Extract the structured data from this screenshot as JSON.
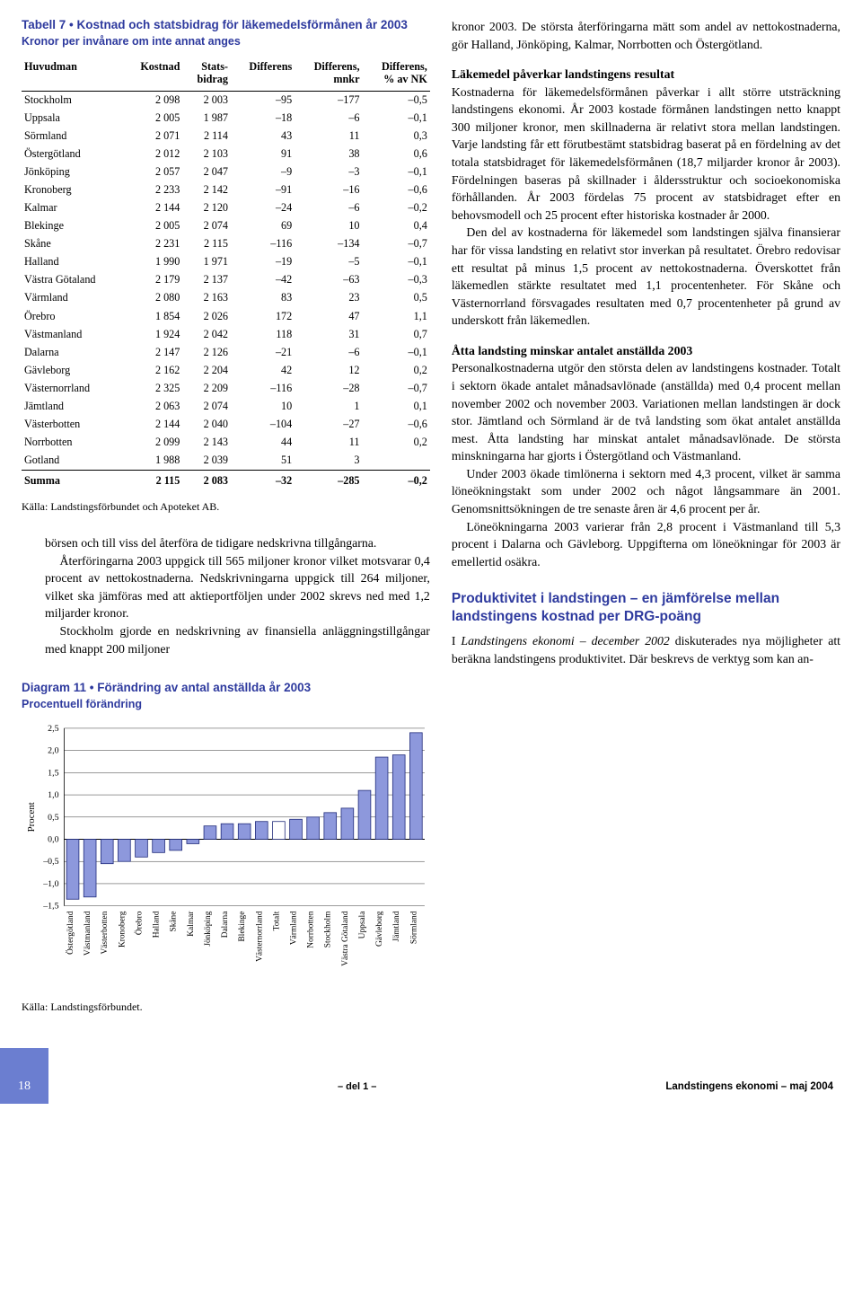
{
  "table7": {
    "title": "Tabell 7 • Kostnad och statsbidrag för läkemedelsförmånen år 2003",
    "subtitle": "Kronor per invånare om inte annat anges",
    "columns": [
      "Huvudman",
      "Kostnad",
      "Stats-\nbidrag",
      "Differens",
      "Differens,\nmnkr",
      "Differens,\n% av NK"
    ],
    "rows": [
      [
        "Stockholm",
        "2 098",
        "2 003",
        "–95",
        "–177",
        "–0,5"
      ],
      [
        "Uppsala",
        "2 005",
        "1 987",
        "–18",
        "–6",
        "–0,1"
      ],
      [
        "Sörmland",
        "2 071",
        "2 114",
        "43",
        "11",
        "0,3"
      ],
      [
        "Östergötland",
        "2 012",
        "2 103",
        "91",
        "38",
        "0,6"
      ],
      [
        "Jönköping",
        "2 057",
        "2 047",
        "–9",
        "–3",
        "–0,1"
      ],
      [
        "Kronoberg",
        "2 233",
        "2 142",
        "–91",
        "–16",
        "–0,6"
      ],
      [
        "Kalmar",
        "2 144",
        "2 120",
        "–24",
        "–6",
        "–0,2"
      ],
      [
        "Blekinge",
        "2 005",
        "2 074",
        "69",
        "10",
        "0,4"
      ],
      [
        "Skåne",
        "2 231",
        "2 115",
        "–116",
        "–134",
        "–0,7"
      ],
      [
        "Halland",
        "1 990",
        "1 971",
        "–19",
        "–5",
        "–0,1"
      ],
      [
        "Västra Götaland",
        "2 179",
        "2 137",
        "–42",
        "–63",
        "–0,3"
      ],
      [
        "Värmland",
        "2 080",
        "2 163",
        "83",
        "23",
        "0,5"
      ],
      [
        "Örebro",
        "1 854",
        "2 026",
        "172",
        "47",
        "1,1"
      ],
      [
        "Västmanland",
        "1 924",
        "2 042",
        "118",
        "31",
        "0,7"
      ],
      [
        "Dalarna",
        "2 147",
        "2 126",
        "–21",
        "–6",
        "–0,1"
      ],
      [
        "Gävleborg",
        "2 162",
        "2 204",
        "42",
        "12",
        "0,2"
      ],
      [
        "Västernorrland",
        "2 325",
        "2 209",
        "–116",
        "–28",
        "–0,7"
      ],
      [
        "Jämtland",
        "2 063",
        "2 074",
        "10",
        "1",
        "0,1"
      ],
      [
        "Västerbotten",
        "2 144",
        "2 040",
        "–104",
        "–27",
        "–0,6"
      ],
      [
        "Norrbotten",
        "2 099",
        "2 143",
        "44",
        "11",
        "0,2"
      ],
      [
        "Gotland",
        "1 988",
        "2 039",
        "51",
        "3",
        ""
      ]
    ],
    "sum": [
      "Summa",
      "2 115",
      "2 083",
      "–32",
      "–285",
      "–0,2"
    ],
    "source": "Källa: Landstingsförbundet och Apoteket AB."
  },
  "left_body": {
    "p1": "börsen och till viss del återföra de tidigare nedskrivna tillgångarna.",
    "p2": "Återföringarna 2003 uppgick till 565 miljoner kronor vilket motsvarar 0,4 procent av nettokostnaderna. Nedskrivningarna uppgick till 264 miljoner, vilket ska jämföras med att aktieportföljen under 2002 skrevs ned med 1,2 miljarder kronor.",
    "p3": "Stockholm gjorde en nedskrivning av finansiella anläggningstillgångar med knappt 200 miljoner"
  },
  "right_body": {
    "p0": "kronor 2003. De största återföringarna mätt som andel av nettokostnaderna, gör Halland, Jönköping, Kalmar, Norrbotten och Östergötland.",
    "lead1": "Läkemedel påverkar landstingens resultat",
    "p1": "Kostnaderna för läkemedelsförmånen påverkar i allt större utsträckning landstingens ekonomi. År 2003 kostade förmånen landstingen netto knappt 300 miljoner kronor, men skillnaderna är relativt stora mellan landstingen. Varje landsting får ett förutbestämt statsbidrag baserat på en fördelning av det totala statsbidraget för läkemedelsförmånen (18,7 miljarder kronor år 2003). Fördelningen baseras på skillnader i åldersstruktur och socioekonomiska förhållanden. År 2003 fördelas 75 procent av statsbidraget efter en behovsmodell och 25 procent efter historiska kostnader år 2000.",
    "p2": "Den del av kostnaderna för läkemedel som landstingen själva finansierar har för vissa landsting en relativt stor inverkan på resultatet. Örebro redovisar ett resultat på minus 1,5 procent av nettokostnaderna. Överskottet från läkemedlen stärkte resultatet med 1,1 procentenheter. För Skåne och Västernorrland försvagades resultaten med 0,7 procentenheter på grund av underskott från läkemedlen.",
    "lead2": "Åtta landsting minskar antalet anställda 2003",
    "p3": "Personalkostnaderna utgör den största delen av landstingens kostnader. Totalt i sektorn ökade antalet månadsavlönade (anställda) med 0,4 procent mellan november 2002 och november 2003. Variationen mellan landstingen är dock stor. Jämtland och Sörmland är de två landsting som ökat antalet anställda mest. Åtta landsting har minskat antalet månadsavlönade. De största minskningarna har gjorts i Östergötland och Västmanland.",
    "p4": "Under 2003 ökade timlönerna i sektorn med 4,3 procent, vilket är samma löneökningstakt som under 2002 och något långsammare än 2001. Genomsnittsökningen de tre senaste åren är 4,6 procent per år.",
    "p5": "Löneökningarna 2003 varierar från 2,8 procent i Västmanland till 5,3 procent i Dalarna och Gävleborg. Uppgifterna om löneökningar för 2003 är emellertid osäkra.",
    "h2": "Produktivitet i landstingen – en jämförelse mellan landstingens kostnad per DRG-poäng",
    "p6a": "I ",
    "p6i": "Landstingens ekonomi – december 2002",
    "p6b": " diskuterades nya möjligheter att beräkna landstingens produktivitet. Där beskrevs de verktyg som kan an-"
  },
  "diagram11": {
    "title": "Diagram 11 • Förändring av antal anställda år 2003",
    "subtitle": "Procentuell förändring",
    "ylabel": "Procent",
    "ylim": [
      -1.5,
      2.5
    ],
    "ytick_step": 0.5,
    "yticks": [
      "2,5",
      "2,0",
      "1,5",
      "1,0",
      "0,5",
      "0,0",
      "–0,5",
      "–1,0",
      "–1,5"
    ],
    "categories": [
      "Östergötland",
      "Västmanland",
      "Västerbotten",
      "Kronoberg",
      "Örebro",
      "Halland",
      "Skåne",
      "Kalmar",
      "Jönköping",
      "Dalarna",
      "Blekinge",
      "Västernorrland",
      "Totalt",
      "Värmland",
      "Norrbotten",
      "Stockholm",
      "Västra Götaland",
      "Uppsala",
      "Gävleborg",
      "Jämtland",
      "Sörmland"
    ],
    "values": [
      -1.35,
      -1.3,
      -0.55,
      -0.5,
      -0.4,
      -0.3,
      -0.25,
      -0.1,
      0.3,
      0.35,
      0.35,
      0.4,
      0.4,
      0.45,
      0.5,
      0.6,
      0.7,
      1.1,
      1.85,
      1.9,
      2.4
    ],
    "bar_fill": "#8d98dc",
    "bar_stroke": "#1f2a7a",
    "totalt_fill": "#ffffff",
    "grid_color": "#333333",
    "background": "#ffffff",
    "source": "Källa: Landstingsförbundet."
  },
  "footer": {
    "del": "– del 1 –",
    "pub": "Landstingens ekonomi – maj 2004",
    "page": "18"
  }
}
